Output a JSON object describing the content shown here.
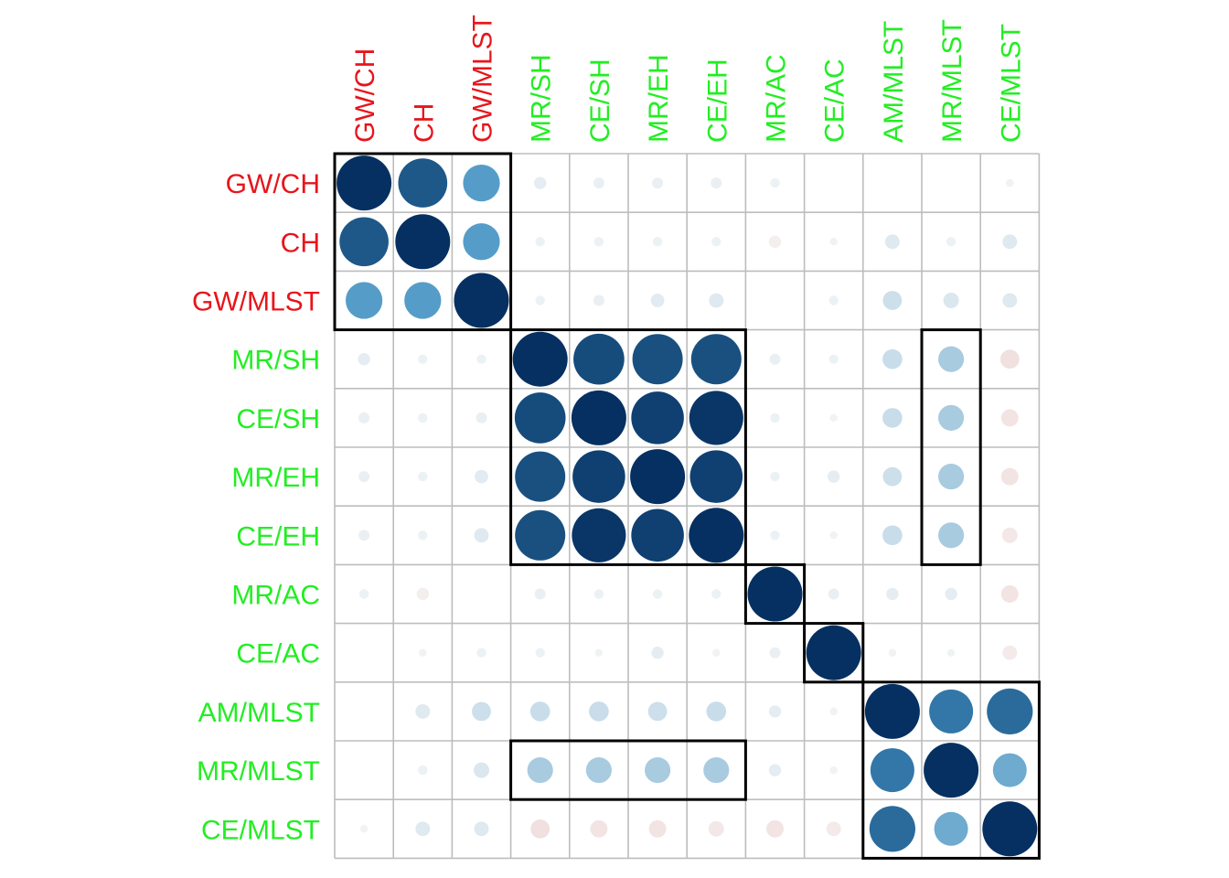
{
  "chart_data": {
    "type": "heatmap",
    "style": "correlation-circles",
    "labels": [
      "GW/CH",
      "CH",
      "GW/MLST",
      "MR/SH",
      "CE/SH",
      "MR/EH",
      "CE/EH",
      "MR/AC",
      "CE/AC",
      "AM/MLST",
      "MR/MLST",
      "CE/MLST"
    ],
    "label_groups": [
      "red",
      "red",
      "red",
      "green",
      "green",
      "green",
      "green",
      "green",
      "green",
      "green",
      "green",
      "green"
    ],
    "group_colors": {
      "red": "#e8141b",
      "green": "#22ee22"
    },
    "value_range": [
      -1,
      1
    ],
    "color_scale": {
      "negative": "#c0392b",
      "zero": "#f7f7f7",
      "positive": "#053061"
    },
    "grid": true,
    "legend": "none",
    "matrix": [
      [
        1.0,
        0.8,
        0.45,
        0.05,
        0.04,
        0.04,
        0.04,
        0.03,
        0.0,
        0.0,
        0.0,
        0.02
      ],
      [
        0.8,
        1.0,
        0.45,
        0.03,
        0.03,
        0.03,
        0.03,
        -0.05,
        0.02,
        0.07,
        0.03,
        0.07
      ],
      [
        0.45,
        0.45,
        1.0,
        0.03,
        0.04,
        0.06,
        0.07,
        0.0,
        0.03,
        0.12,
        0.08,
        0.07
      ],
      [
        0.05,
        0.03,
        0.03,
        1.0,
        0.86,
        0.84,
        0.84,
        0.04,
        0.03,
        0.13,
        0.22,
        -0.12
      ],
      [
        0.04,
        0.03,
        0.04,
        0.86,
        1.0,
        0.92,
        0.97,
        0.03,
        0.02,
        0.13,
        0.22,
        -0.1
      ],
      [
        0.04,
        0.03,
        0.06,
        0.84,
        0.92,
        1.0,
        0.92,
        0.03,
        0.05,
        0.12,
        0.22,
        -0.1
      ],
      [
        0.04,
        0.03,
        0.07,
        0.84,
        0.97,
        0.92,
        1.0,
        0.03,
        0.02,
        0.13,
        0.22,
        -0.08
      ],
      [
        0.03,
        -0.05,
        0.0,
        0.04,
        0.03,
        0.03,
        0.03,
        1.0,
        0.04,
        0.05,
        0.05,
        -0.1
      ],
      [
        0.0,
        0.02,
        0.03,
        0.03,
        0.02,
        0.05,
        0.02,
        0.04,
        1.0,
        0.02,
        0.02,
        -0.07
      ],
      [
        0.0,
        0.07,
        0.12,
        0.13,
        0.13,
        0.12,
        0.13,
        0.05,
        0.02,
        1.0,
        0.64,
        0.7
      ],
      [
        0.0,
        0.03,
        0.08,
        0.22,
        0.22,
        0.22,
        0.22,
        0.05,
        0.02,
        0.64,
        1.0,
        0.38
      ],
      [
        0.02,
        0.07,
        0.07,
        -0.12,
        -0.1,
        -0.1,
        -0.08,
        -0.1,
        -0.07,
        0.7,
        0.38,
        1.0
      ]
    ],
    "cluster_boxes": [
      {
        "rows": [
          0,
          2
        ],
        "cols": [
          0,
          2
        ]
      },
      {
        "rows": [
          3,
          6
        ],
        "cols": [
          3,
          6
        ]
      },
      {
        "rows": [
          7,
          7
        ],
        "cols": [
          7,
          7
        ]
      },
      {
        "rows": [
          8,
          8
        ],
        "cols": [
          8,
          8
        ]
      },
      {
        "rows": [
          9,
          11
        ],
        "cols": [
          9,
          11
        ]
      },
      {
        "rows": [
          3,
          6
        ],
        "cols": [
          10,
          10
        ]
      },
      {
        "rows": [
          10,
          10
        ],
        "cols": [
          3,
          6
        ]
      }
    ]
  }
}
